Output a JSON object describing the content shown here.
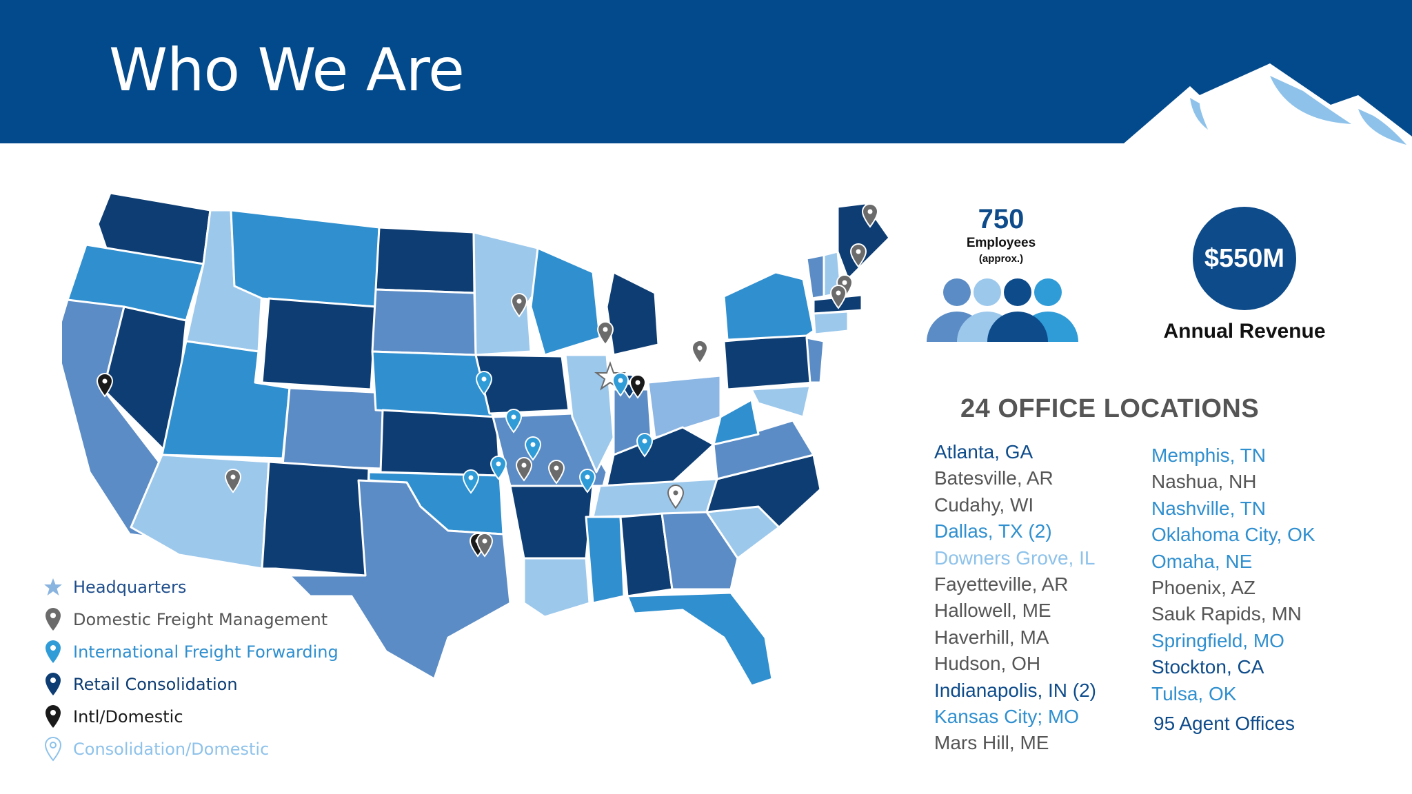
{
  "header": {
    "title": "Who We Are"
  },
  "colors": {
    "header_bg": "#034a8c",
    "dark_navy": "#0d3d73",
    "medium_blue": "#2f8fcf",
    "steel_blue": "#5b8cc5",
    "light_blue": "#9cc8ec",
    "gray": "#555555"
  },
  "stats": {
    "employees_number": "750",
    "employees_label": "Employees",
    "employees_note": "(approx.)",
    "revenue_value": "$550M",
    "revenue_label": "Annual Revenue"
  },
  "offices": {
    "title": "24 OFFICE LOCATIONS",
    "column1": [
      {
        "name": "Atlanta, GA",
        "style": "dark"
      },
      {
        "name": "Batesville, AR",
        "style": "gray"
      },
      {
        "name": "Cudahy, WI",
        "style": "gray"
      },
      {
        "name": "Dallas, TX (2)",
        "style": "mid"
      },
      {
        "name": "Downers Grove, IL",
        "style": "light"
      },
      {
        "name": "Fayetteville, AR",
        "style": "gray"
      },
      {
        "name": "Hallowell, ME",
        "style": "gray"
      },
      {
        "name": "Haverhill, MA",
        "style": "gray"
      },
      {
        "name": "Hudson, OH",
        "style": "gray"
      },
      {
        "name": "Indianapolis, IN (2)",
        "style": "dark"
      },
      {
        "name": "Kansas City; MO",
        "style": "mid"
      },
      {
        "name": "Mars Hill, ME",
        "style": "gray"
      }
    ],
    "column2": [
      {
        "name": "Memphis, TN",
        "style": "mid"
      },
      {
        "name": "Nashua, NH",
        "style": "gray"
      },
      {
        "name": "Nashville, TN",
        "style": "mid"
      },
      {
        "name": "Oklahoma City, OK",
        "style": "mid"
      },
      {
        "name": "Omaha, NE",
        "style": "mid"
      },
      {
        "name": "Phoenix, AZ",
        "style": "gray"
      },
      {
        "name": "Sauk Rapids, MN",
        "style": "gray"
      },
      {
        "name": "Springfield, MO",
        "style": "mid"
      },
      {
        "name": "Stockton, CA",
        "style": "dark"
      },
      {
        "name": "Tulsa, OK",
        "style": "mid"
      }
    ],
    "agent_offices": "95 Agent Offices"
  },
  "legend": [
    {
      "label": "Headquarters",
      "icon": "star-icon",
      "color": "#8ab4e0",
      "text_color": "#1f4e8c"
    },
    {
      "label": "Domestic Freight Management",
      "icon": "gray-pin-icon",
      "color": "#6b6b6b",
      "text_color": "#555555"
    },
    {
      "label": "International Freight Forwarding",
      "icon": "light-blue-pin-icon",
      "color": "#2f9bd7",
      "text_color": "#2f8fcf"
    },
    {
      "label": "Retail Consolidation",
      "icon": "navy-pin-icon",
      "color": "#0d3d73",
      "text_color": "#0d3d73"
    },
    {
      "label": "Intl/Domestic",
      "icon": "black-pin-icon",
      "color": "#1a1a1a",
      "text_color": "#1a1a1a"
    },
    {
      "label": "Consolidation/Domestic",
      "icon": "outline-pin-icon",
      "color": "#8ec2ea",
      "text_color": "#8ec2ea"
    }
  ]
}
